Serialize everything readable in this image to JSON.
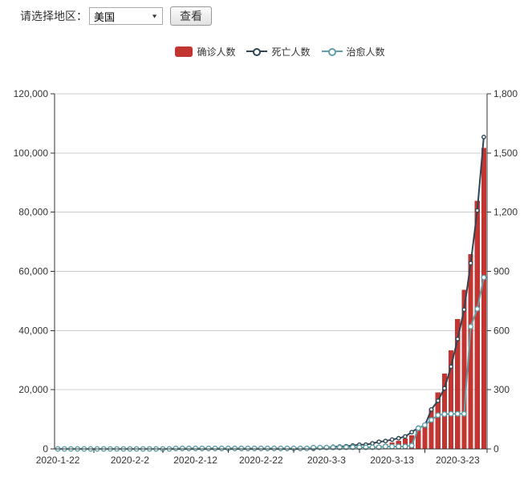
{
  "controls": {
    "label": "请选择地区：",
    "region_value": "美国",
    "view_button": "查看",
    "select_arrow": "▼"
  },
  "legend": {
    "items": [
      {
        "key": "confirmed",
        "label": "确诊人数",
        "type": "bar",
        "color": "#c23531"
      },
      {
        "key": "deaths",
        "label": "死亡人数",
        "type": "line",
        "color": "#2f4554"
      },
      {
        "key": "recovered",
        "label": "治愈人数",
        "type": "line",
        "color": "#61a0a8"
      }
    ]
  },
  "chart_data": {
    "type": "bar+line",
    "title": "",
    "grid": true,
    "legend_position": "top-center",
    "x": [
      "2020-1-22",
      "2020-1-23",
      "2020-1-24",
      "2020-1-25",
      "2020-1-26",
      "2020-1-27",
      "2020-1-28",
      "2020-1-29",
      "2020-1-30",
      "2020-1-31",
      "2020-2-1",
      "2020-2-2",
      "2020-2-3",
      "2020-2-4",
      "2020-2-5",
      "2020-2-6",
      "2020-2-7",
      "2020-2-8",
      "2020-2-9",
      "2020-2-10",
      "2020-2-11",
      "2020-2-12",
      "2020-2-13",
      "2020-2-14",
      "2020-2-15",
      "2020-2-16",
      "2020-2-17",
      "2020-2-18",
      "2020-2-19",
      "2020-2-20",
      "2020-2-21",
      "2020-2-22",
      "2020-2-23",
      "2020-2-24",
      "2020-2-25",
      "2020-2-26",
      "2020-2-27",
      "2020-2-28",
      "2020-2-29",
      "2020-3-1",
      "2020-3-2",
      "2020-3-3",
      "2020-3-4",
      "2020-3-5",
      "2020-3-6",
      "2020-3-7",
      "2020-3-8",
      "2020-3-9",
      "2020-3-10",
      "2020-3-11",
      "2020-3-12",
      "2020-3-13",
      "2020-3-14",
      "2020-3-15",
      "2020-3-16",
      "2020-3-17",
      "2020-3-18",
      "2020-3-19",
      "2020-3-20",
      "2020-3-21",
      "2020-3-22",
      "2020-3-23",
      "2020-3-24",
      "2020-3-25",
      "2020-3-26",
      "2020-3-27"
    ],
    "x_axis": {
      "tick_labels": [
        "2020-1-22",
        "2020-2-2",
        "2020-2-12",
        "2020-2-22",
        "2020-3-3",
        "2020-3-13",
        "2020-3-23"
      ],
      "tick_indices": [
        0,
        11,
        21,
        31,
        41,
        51,
        61
      ]
    },
    "y_axis_left": {
      "min": 0,
      "max": 120000,
      "interval": 20000,
      "ticks": [
        "0",
        "20,000",
        "40,000",
        "60,000",
        "80,000",
        "100,000",
        "120,000"
      ]
    },
    "y_axis_right": {
      "min": 0,
      "max": 1800,
      "interval": 300,
      "ticks": [
        "0",
        "300",
        "600",
        "900",
        "1,200",
        "1,500",
        "1,800"
      ]
    },
    "series": [
      {
        "key": "confirmed",
        "name": "确诊人数",
        "type": "bar",
        "axis": "left",
        "color": "#c23531",
        "values": [
          1,
          1,
          2,
          2,
          5,
          5,
          5,
          5,
          5,
          7,
          8,
          8,
          11,
          11,
          11,
          11,
          11,
          11,
          11,
          11,
          12,
          12,
          13,
          13,
          13,
          13,
          13,
          13,
          13,
          13,
          15,
          15,
          15,
          51,
          51,
          57,
          58,
          60,
          68,
          74,
          98,
          118,
          149,
          217,
          262,
          402,
          518,
          583,
          959,
          1281,
          1663,
          2179,
          2727,
          3499,
          4632,
          6421,
          7783,
          13677,
          19100,
          25489,
          33276,
          43847,
          53740,
          65778,
          83836,
          101657
        ]
      },
      {
        "key": "deaths",
        "name": "死亡人数",
        "type": "line",
        "axis": "right",
        "color": "#2f4554",
        "values": [
          0,
          0,
          0,
          0,
          0,
          0,
          0,
          0,
          0,
          0,
          0,
          0,
          0,
          0,
          0,
          0,
          0,
          0,
          0,
          0,
          0,
          0,
          0,
          0,
          0,
          0,
          0,
          0,
          0,
          0,
          0,
          0,
          0,
          0,
          0,
          0,
          0,
          0,
          1,
          1,
          6,
          7,
          11,
          12,
          14,
          17,
          21,
          22,
          28,
          36,
          40,
          47,
          54,
          63,
          85,
          108,
          118,
          200,
          244,
          307,
          417,
          557,
          706,
          942,
          1209,
          1581
        ]
      },
      {
        "key": "recovered",
        "name": "治愈人数",
        "type": "line",
        "axis": "right",
        "color": "#61a0a8",
        "values": [
          0,
          0,
          0,
          0,
          0,
          0,
          0,
          0,
          0,
          0,
          0,
          0,
          0,
          0,
          0,
          0,
          0,
          0,
          3,
          3,
          3,
          3,
          3,
          3,
          3,
          3,
          3,
          3,
          3,
          3,
          3,
          3,
          3,
          3,
          3,
          3,
          3,
          3,
          3,
          7,
          7,
          7,
          7,
          7,
          8,
          8,
          8,
          8,
          8,
          8,
          12,
          12,
          12,
          12,
          17,
          105,
          121,
          147,
          171,
          176,
          178,
          178,
          178,
          620,
          710,
          869
        ]
      }
    ]
  }
}
